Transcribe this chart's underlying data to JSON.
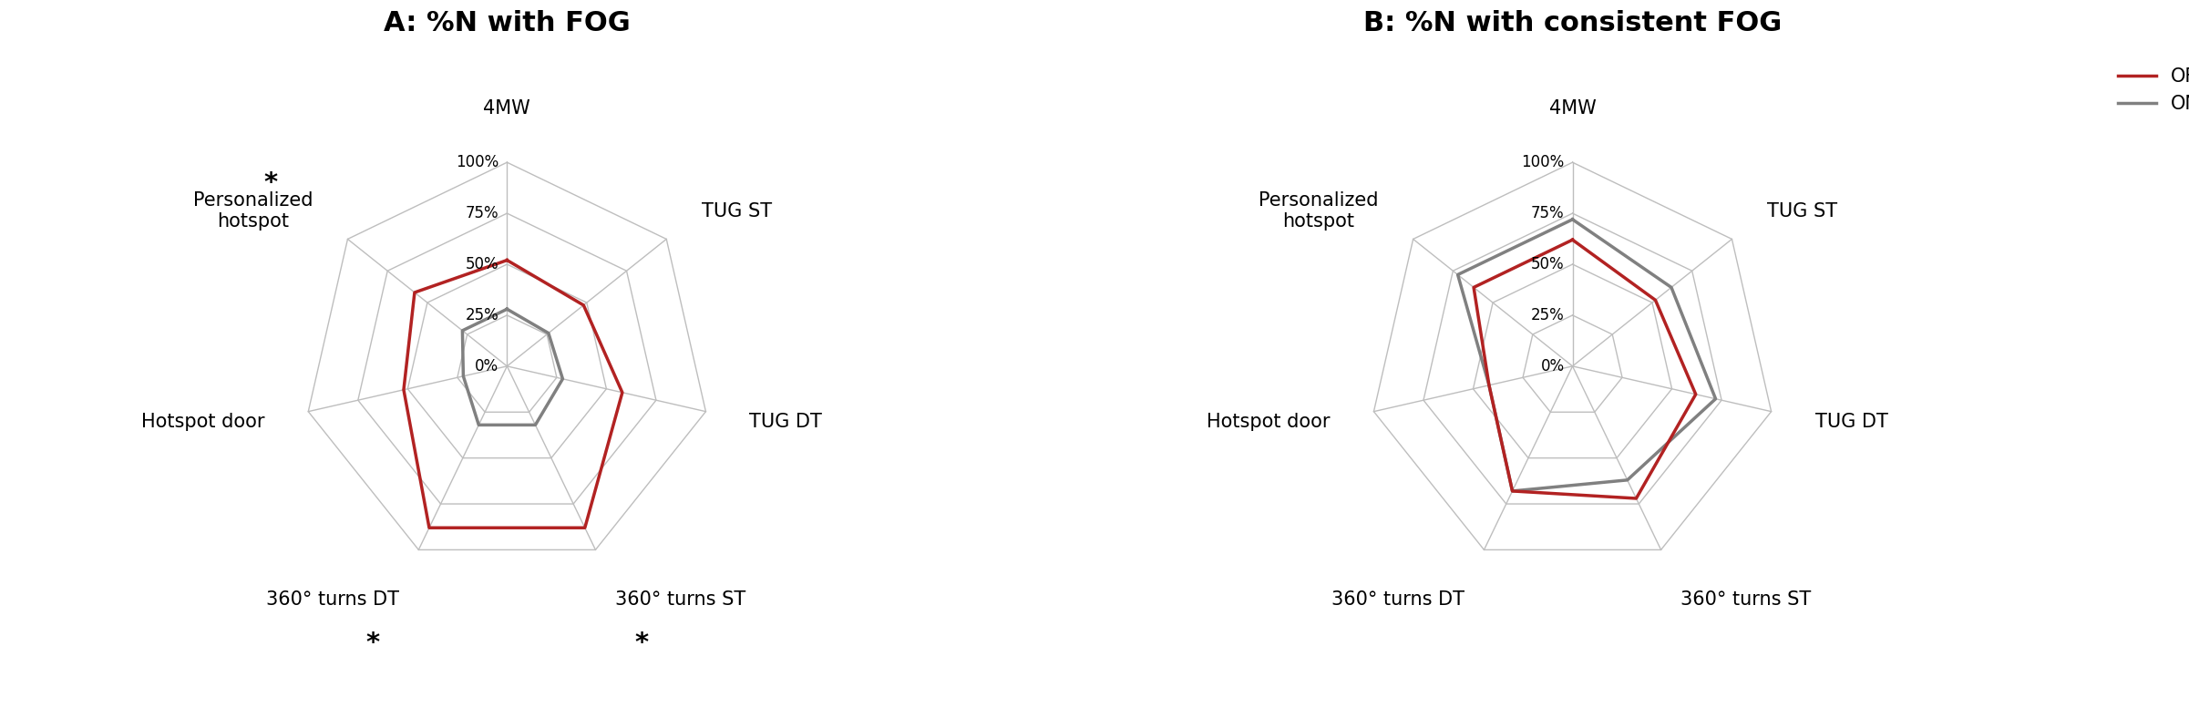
{
  "chart_A": {
    "title": "A: %N with FOG",
    "categories": [
      "4MW",
      "TUG ST",
      "TUG DT",
      "360° turns ST",
      "360° turns DT",
      "Hotspot door",
      "Personalized\nhotspot"
    ],
    "OFF": [
      52,
      48,
      58,
      88,
      88,
      52,
      58
    ],
    "ON": [
      28,
      26,
      28,
      32,
      32,
      22,
      28
    ],
    "asterisks": [
      false,
      false,
      false,
      true,
      true,
      false,
      true
    ]
  },
  "chart_B": {
    "title": "B: %N with consistent FOG",
    "categories": [
      "4MW",
      "TUG ST",
      "TUG DT",
      "360° turns ST",
      "360° turns DT",
      "Hotspot door",
      "Personalized\nhotspot"
    ],
    "OFF": [
      62,
      52,
      62,
      72,
      68,
      42,
      62
    ],
    "ON": [
      72,
      62,
      72,
      62,
      68,
      42,
      72
    ],
    "asterisks": [
      false,
      false,
      false,
      false,
      false,
      false,
      false
    ]
  },
  "radar_max": 100,
  "radar_ticks": [
    0,
    25,
    50,
    75,
    100
  ],
  "color_OFF": "#B22222",
  "color_ON": "#808080",
  "color_grid": "#BEBEBE",
  "linewidth_data": 2.5,
  "linewidth_grid": 1.0,
  "title_fontsize": 22,
  "label_fontsize": 15,
  "tick_fontsize": 12,
  "legend_fontsize": 15
}
